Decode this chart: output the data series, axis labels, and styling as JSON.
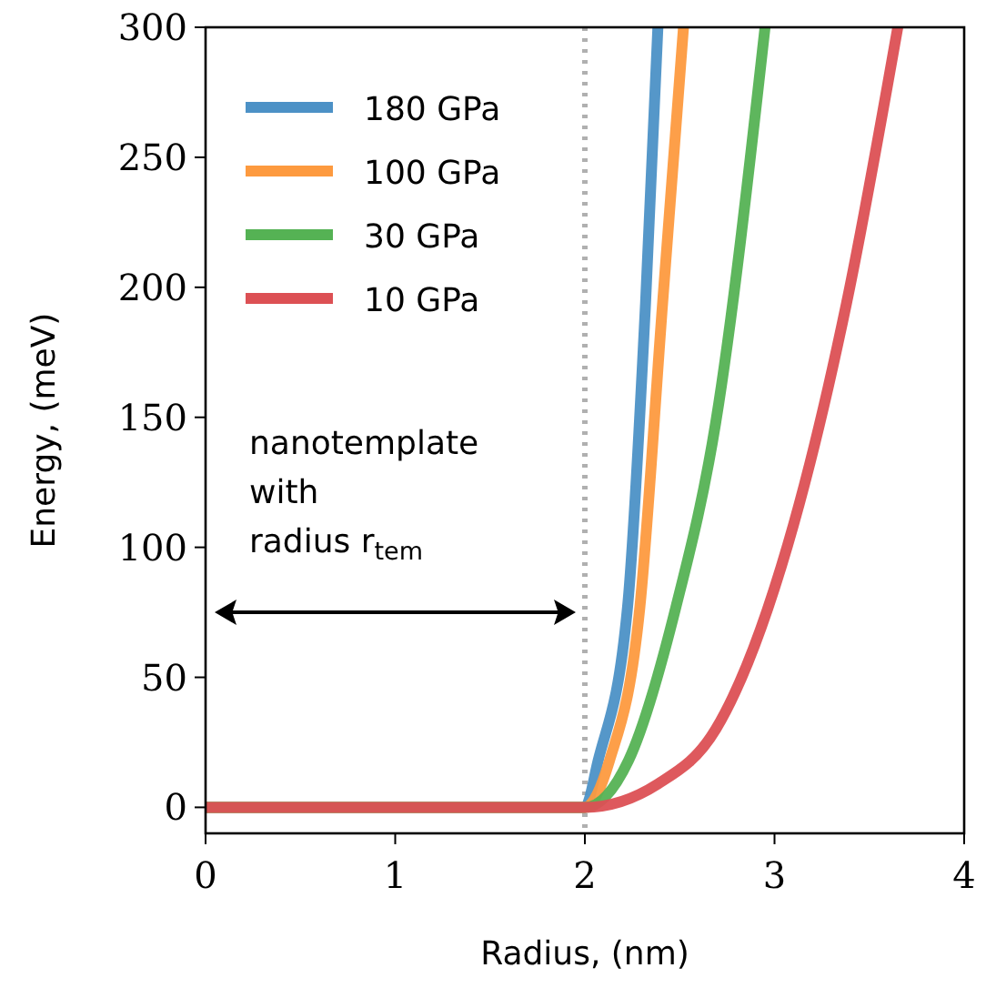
{
  "chart_data": {
    "type": "line",
    "xlabel": "Radius, (nm)",
    "ylabel": "Energy, (meV)",
    "xlim": [
      0,
      4
    ],
    "xticks": [
      0,
      1,
      2,
      3,
      4
    ],
    "ylim": [
      -10,
      300
    ],
    "yticks": [
      0,
      50,
      100,
      150,
      200,
      250,
      300
    ],
    "grid": false,
    "legend": "top left",
    "line_style": "solid",
    "series": [
      {
        "name": "180 GPa",
        "color": "#4c91c6",
        "x": [
          0,
          2,
          2.07,
          2.225,
          2.32,
          2.385
        ],
        "values": [
          0,
          0,
          18,
          77,
          194,
          300
        ]
      },
      {
        "name": "100 GPa",
        "color": "#fd9a3f",
        "x": [
          0,
          2,
          2.13,
          2.29,
          2.41,
          2.52
        ],
        "values": [
          0,
          0,
          18,
          77,
          194,
          300
        ]
      },
      {
        "name": "30 GPa",
        "color": "#55b254",
        "x": [
          0,
          2,
          2.23,
          2.48,
          2.69,
          2.95
        ],
        "values": [
          0,
          0,
          18,
          77,
          148,
          300
        ]
      },
      {
        "name": "10 GPa",
        "color": "#dc5054",
        "x": [
          0,
          2,
          2.385,
          2.69,
          3.07,
          3.38,
          3.65
        ],
        "values": [
          0,
          0,
          9,
          30,
          101,
          194,
          300
        ]
      }
    ],
    "ref_lines": [
      {
        "axis": "x",
        "value": 2,
        "color": "#b0b0b0",
        "line_style": "dotted"
      }
    ],
    "annotations": [
      "nanotemplate\nwith\nradius r$_{tem}$"
    ]
  }
}
